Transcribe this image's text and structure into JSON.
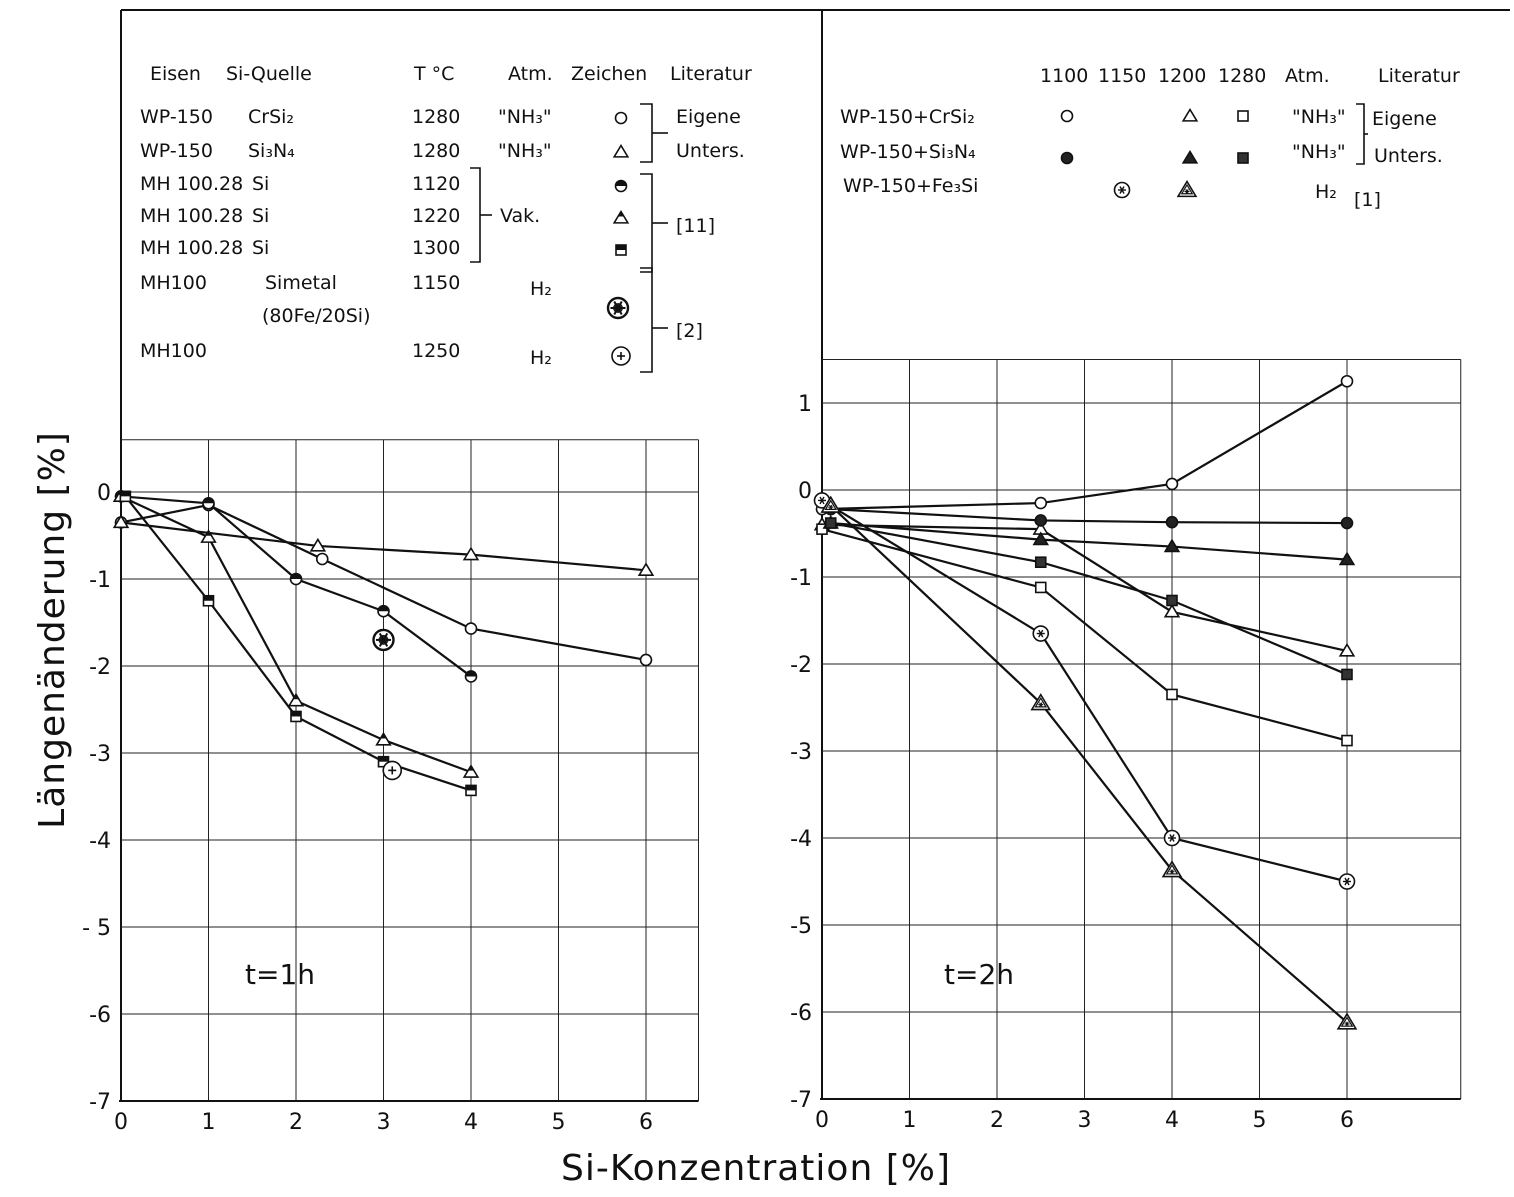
{
  "chart_data": [
    {
      "type": "line",
      "panel": "left",
      "annotation": "t=1h",
      "xlim": [
        0,
        6.6
      ],
      "ylim": [
        -7,
        0.6
      ],
      "x_ticks": [
        0,
        1,
        2,
        3,
        4,
        5,
        6
      ],
      "y_ticks": [
        0,
        -1,
        -2,
        -3,
        -4,
        -5,
        -6,
        -7
      ],
      "y_tick_labels": [
        "0",
        "-1",
        "-2",
        "-3",
        "-4",
        "- 5",
        "-6",
        "-7"
      ],
      "series": [
        {
          "marker": "circle-open",
          "x": [
            0,
            1,
            2.3,
            4,
            6
          ],
          "y": [
            -0.35,
            -0.15,
            -0.77,
            -1.57,
            -1.93
          ]
        },
        {
          "marker": "triangle-open",
          "x": [
            0,
            2.25,
            4,
            6
          ],
          "y": [
            -0.35,
            -0.62,
            -0.72,
            -0.9
          ]
        },
        {
          "marker": "circle-half",
          "x": [
            0,
            1,
            2,
            3,
            4
          ],
          "y": [
            -0.05,
            -0.13,
            -1.0,
            -1.37,
            -2.12
          ]
        },
        {
          "marker": "triangle-half",
          "x": [
            0,
            1,
            2,
            3,
            4
          ],
          "y": [
            -0.05,
            -0.52,
            -2.4,
            -2.85,
            -3.22
          ]
        },
        {
          "marker": "square-half",
          "x": [
            0.05,
            1,
            2,
            3,
            4
          ],
          "y": [
            -0.05,
            -1.25,
            -2.58,
            -3.1,
            -3.43
          ]
        },
        {
          "marker": "circle-star-bold",
          "x": [
            3
          ],
          "y": [
            -1.7
          ]
        },
        {
          "marker": "circle-plus",
          "x": [
            3.1
          ],
          "y": [
            -3.2
          ]
        }
      ]
    },
    {
      "type": "line",
      "panel": "right",
      "annotation": "t=2h",
      "xlim": [
        0,
        7.3
      ],
      "ylim": [
        -7,
        1.5
      ],
      "x_ticks": [
        0,
        1,
        2,
        3,
        4,
        5,
        6
      ],
      "y_ticks": [
        1,
        0,
        -1,
        -2,
        -3,
        -4,
        -5,
        -6,
        -7
      ],
      "y_tick_labels": [
        "1",
        "0",
        "-1",
        "-2",
        "-3",
        "-4",
        "-5",
        "-6",
        "-7"
      ],
      "series": [
        {
          "marker": "circle-open",
          "x": [
            0,
            2.5,
            4,
            6
          ],
          "y": [
            -0.22,
            -0.15,
            0.07,
            1.25
          ]
        },
        {
          "marker": "triangle-open",
          "x": [
            0,
            2.5,
            4,
            6
          ],
          "y": [
            -0.4,
            -0.45,
            -1.4,
            -1.85
          ]
        },
        {
          "marker": "square-open",
          "x": [
            0,
            2.5,
            4,
            6
          ],
          "y": [
            -0.45,
            -1.12,
            -2.35,
            -2.88
          ]
        },
        {
          "marker": "circle-filled",
          "x": [
            0.1,
            2.5,
            4,
            6
          ],
          "y": [
            -0.22,
            -0.35,
            -0.37,
            -0.38
          ]
        },
        {
          "marker": "triangle-filled",
          "x": [
            0.1,
            2.5,
            4,
            6
          ],
          "y": [
            -0.38,
            -0.57,
            -0.65,
            -0.8
          ]
        },
        {
          "marker": "square-filled",
          "x": [
            0.1,
            2.5,
            4,
            6
          ],
          "y": [
            -0.38,
            -0.83,
            -1.27,
            -2.12
          ]
        },
        {
          "marker": "circle-star",
          "x": [
            0,
            2.5,
            4,
            6
          ],
          "y": [
            -0.12,
            -1.65,
            -4.0,
            -4.5
          ]
        },
        {
          "marker": "triangle-star",
          "x": [
            0.1,
            2.5,
            4,
            6
          ],
          "y": [
            -0.18,
            -2.45,
            -4.37,
            -6.12
          ]
        }
      ]
    }
  ],
  "axes": {
    "ylabel": "Längenänderung [%]",
    "xlabel": "Si-Konzentration [%]"
  },
  "legend_left": {
    "headers": [
      "Eisen",
      "Si-Quelle",
      "T °C",
      "Atm.",
      "Zeichen",
      "Literatur"
    ],
    "rows": [
      {
        "eisen": "WP-150",
        "quelle": "CrSi₂",
        "temp": "1280",
        "atm": "\"NH₃\"",
        "marker": "circle-open"
      },
      {
        "eisen": "WP-150",
        "quelle": "Si₃N₄",
        "temp": "1280",
        "atm": "\"NH₃\"",
        "marker": "triangle-open"
      },
      {
        "eisen": "MH 100.28",
        "quelle": "Si",
        "temp": "1120",
        "atm": "",
        "marker": "circle-half"
      },
      {
        "eisen": "MH 100.28",
        "quelle": "Si",
        "temp": "1220",
        "atm": "Vak.",
        "marker": "triangle-half"
      },
      {
        "eisen": "MH 100.28",
        "quelle": "Si",
        "temp": "1300",
        "atm": "",
        "marker": "square-half"
      },
      {
        "eisen": "MH100",
        "quelle": "Simetal",
        "quelle2": "(80Fe/20Si)",
        "temp": "1150",
        "atm": "H₂",
        "marker": "circle-star-bold"
      },
      {
        "eisen": "MH100",
        "quelle": "",
        "temp": "1250",
        "atm": "H₂",
        "marker": "circle-plus"
      }
    ],
    "lit_eigene": "Eigene",
    "lit_unters": "Unters.",
    "lit_11": "[11]",
    "lit_2": "[2]"
  },
  "legend_right": {
    "temp_headers": [
      "1100",
      "1150",
      "1200",
      "1280"
    ],
    "atm_header": "Atm.",
    "lit_header": "Literatur",
    "rows": [
      {
        "label": "WP-150+CrSi₂",
        "atm": "\"NH₃\""
      },
      {
        "label": "WP-150+Si₃N₄",
        "atm": "\"NH₃\""
      },
      {
        "label": "WP-150+Fe₃Si",
        "atm": "H₂"
      }
    ],
    "lit_eigene": "Eigene",
    "lit_unters": "Unters.",
    "lit_1": "[1]"
  }
}
